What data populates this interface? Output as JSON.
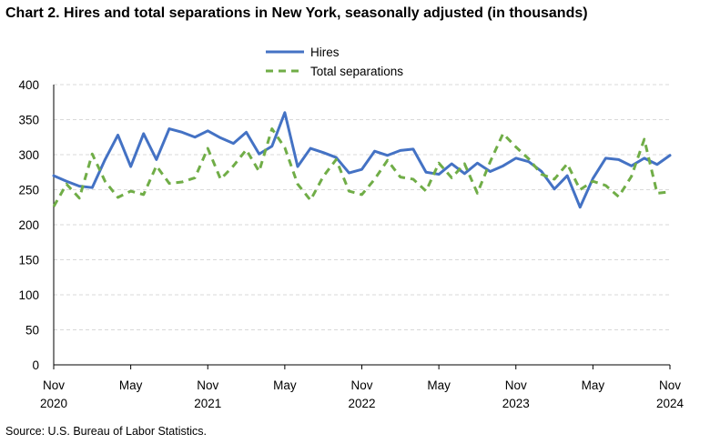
{
  "title": "Chart 2. Hires and total separations in New York, seasonally adjusted (in thousands)",
  "source": "Source: U.S. Bureau of Labor Statistics.",
  "chart_data": {
    "type": "line",
    "title": "Chart 2. Hires and total separations in New York, seasonally adjusted (in thousands)",
    "xlabel": "",
    "ylabel": "",
    "ylim": [
      0,
      400
    ],
    "yticks": [
      0,
      50,
      100,
      150,
      200,
      250,
      300,
      350,
      400
    ],
    "grid": "horizontal dashed",
    "legend": "top-center",
    "x_tick_labels": [
      {
        "month": "Nov",
        "year": "2020",
        "index": 0
      },
      {
        "month": "May",
        "year": "",
        "index": 6
      },
      {
        "month": "Nov",
        "year": "2021",
        "index": 12
      },
      {
        "month": "May",
        "year": "",
        "index": 18
      },
      {
        "month": "Nov",
        "year": "2022",
        "index": 24
      },
      {
        "month": "May",
        "year": "",
        "index": 30
      },
      {
        "month": "Nov",
        "year": "2023",
        "index": 36
      },
      {
        "month": "May",
        "year": "",
        "index": 42
      },
      {
        "month": "Nov",
        "year": "2024",
        "index": 48
      }
    ],
    "x": [
      "2020-11",
      "2020-12",
      "2021-01",
      "2021-02",
      "2021-03",
      "2021-04",
      "2021-05",
      "2021-06",
      "2021-07",
      "2021-08",
      "2021-09",
      "2021-10",
      "2021-11",
      "2021-12",
      "2022-01",
      "2022-02",
      "2022-03",
      "2022-04",
      "2022-05",
      "2022-06",
      "2022-07",
      "2022-08",
      "2022-09",
      "2022-10",
      "2022-11",
      "2022-12",
      "2023-01",
      "2023-02",
      "2023-03",
      "2023-04",
      "2023-05",
      "2023-06",
      "2023-07",
      "2023-08",
      "2023-09",
      "2023-10",
      "2023-11",
      "2023-12",
      "2024-01",
      "2024-02",
      "2024-03",
      "2024-04",
      "2024-05",
      "2024-06",
      "2024-07",
      "2024-08",
      "2024-09",
      "2024-10",
      "2024-11"
    ],
    "series": [
      {
        "name": "Hires",
        "color": "#4472C4",
        "style": "solid",
        "values": [
          270,
          262,
          255,
          253,
          293,
          328,
          283,
          330,
          293,
          337,
          332,
          325,
          334,
          324,
          316,
          332,
          301,
          312,
          360,
          283,
          309,
          303,
          296,
          274,
          279,
          305,
          299,
          306,
          308,
          275,
          272,
          287,
          273,
          288,
          276,
          284,
          295,
          290,
          276,
          251,
          270,
          225,
          266,
          295,
          293,
          284,
          295,
          286,
          299
        ]
      },
      {
        "name": "Total separations",
        "color": "#70AD47",
        "style": "dashed",
        "values": [
          226,
          258,
          238,
          301,
          262,
          239,
          248,
          243,
          284,
          259,
          261,
          267,
          309,
          265,
          284,
          307,
          276,
          337,
          310,
          258,
          235,
          269,
          293,
          248,
          243,
          265,
          292,
          268,
          265,
          248,
          288,
          267,
          287,
          245,
          290,
          330,
          311,
          294,
          272,
          265,
          287,
          250,
          262,
          256,
          240,
          269,
          322,
          245,
          247
        ]
      }
    ]
  }
}
